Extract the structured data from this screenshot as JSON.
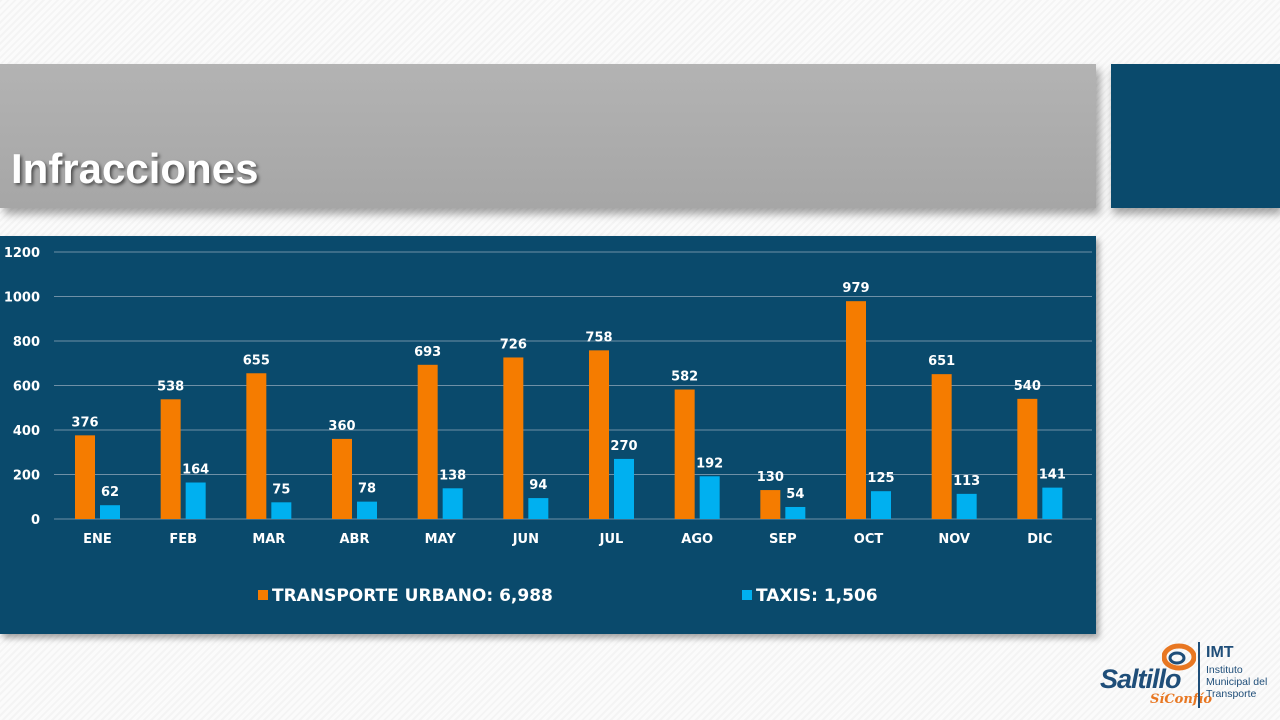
{
  "slide": {
    "title": "Infracciones"
  },
  "logo": {
    "name": "Saltillo",
    "tagline": "SíConfío",
    "acronym": "IMT",
    "full_name": "Instituto Municipal del Transporte"
  },
  "colors": {
    "panel_bg": "#0a4a6c",
    "series_urbano": "#f57c00",
    "series_taxis": "#00b0f0",
    "text": "#ffffff",
    "grid": "#6f90a6"
  },
  "chart_data": {
    "type": "bar",
    "categories": [
      "ENE",
      "FEB",
      "MAR",
      "ABR",
      "MAY",
      "JUN",
      "JUL",
      "AGO",
      "SEP",
      "OCT",
      "NOV",
      "DIC"
    ],
    "series": [
      {
        "name": "TRANSPORTE URBANO: 6,988",
        "values": [
          376,
          538,
          655,
          360,
          693,
          726,
          758,
          582,
          130,
          979,
          651,
          540
        ]
      },
      {
        "name": "TAXIS: 1,506",
        "values": [
          62,
          164,
          75,
          78,
          138,
          94,
          270,
          192,
          54,
          125,
          113,
          141
        ]
      }
    ],
    "ylim": [
      0,
      1200
    ],
    "yticks": [
      0,
      200,
      400,
      600,
      800,
      1000,
      1200
    ],
    "grid": true,
    "legend_position": "bottom",
    "data_labels": true
  }
}
